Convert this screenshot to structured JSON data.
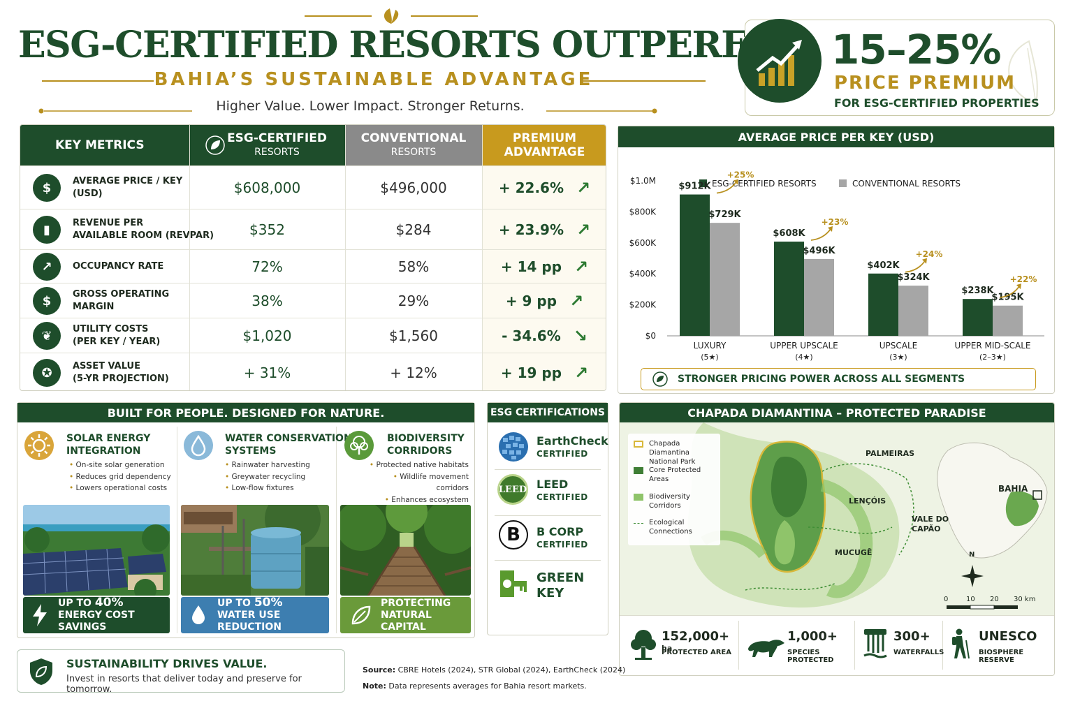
{
  "header": {
    "title": "ESG-CERTIFIED RESORTS OUTPERFORM",
    "subtitle": "BAHIA’S SUSTAINABLE ADVANTAGE",
    "tagline": "Higher Value. Lower Impact. Stronger Returns."
  },
  "premium": {
    "value": "15–25%",
    "label": "PRICE PREMIUM",
    "sub": "FOR ESG-CERTIFIED PROPERTIES",
    "icon": "growth-chart-icon"
  },
  "metrics_table": {
    "headers": {
      "metric": "KEY METRICS",
      "esg": "ESG-CERTIFIED",
      "esg_sub": "RESORTS",
      "conv": "CONVENTIONAL",
      "conv_sub": "RESORTS",
      "prem": "PREMIUM",
      "prem_sub": "ADVANTAGE"
    },
    "rows": [
      {
        "label1": "AVERAGE PRICE / KEY",
        "label2": "(USD)",
        "esg": "$608,000",
        "conv": "$496,000",
        "adv": "+ 22.6%",
        "dir": "up",
        "icon": "$"
      },
      {
        "label1": "REVENUE PER",
        "label2": "AVAILABLE ROOM (REVPAR)",
        "esg": "$352",
        "conv": "$284",
        "adv": "+ 23.9%",
        "dir": "up",
        "icon": "▮"
      },
      {
        "label1": "OCCUPANCY RATE",
        "label2": "",
        "esg": "72%",
        "conv": "58%",
        "adv": "+ 14 pp",
        "dir": "up",
        "icon": "↗"
      },
      {
        "label1": "GROSS OPERATING",
        "label2": "MARGIN",
        "esg": "38%",
        "conv": "29%",
        "adv": "+ 9 pp",
        "dir": "up",
        "icon": "$"
      },
      {
        "label1": "UTILITY COSTS",
        "label2": "(PER KEY / YEAR)",
        "esg": "$1,020",
        "conv": "$1,560",
        "adv": "- 34.6%",
        "dir": "down",
        "icon": "❦"
      },
      {
        "label1": "ASSET VALUE",
        "label2": "(5-YR PROJECTION)",
        "esg": "+ 31%",
        "conv": "+ 12%",
        "adv": "+ 19 pp",
        "dir": "up",
        "icon": "✪"
      }
    ]
  },
  "chart": {
    "heading": "AVERAGE PRICE PER KEY (USD)",
    "footer": "STRONGER PRICING POWER ACROSS ALL SEGMENTS",
    "colors": {
      "esg": "#1e4d2b",
      "conv": "#a6a6a6",
      "accent": "#b8901f"
    }
  },
  "chart_data": {
    "type": "bar",
    "title": "AVERAGE PRICE PER KEY (USD)",
    "categories": [
      "LUXURY",
      "UPPER UPSCALE",
      "UPSCALE",
      "UPPER MID-SCALE"
    ],
    "category_subs": [
      "(5★)",
      "(4★)",
      "(3★)",
      "(2–3★)"
    ],
    "series": [
      {
        "name": "ESG-CERTIFIED RESORTS",
        "values": [
          912,
          608,
          402,
          238
        ],
        "labels": [
          "$912K",
          "$608K",
          "$402K",
          "$238K"
        ]
      },
      {
        "name": "CONVENTIONAL RESORTS",
        "values": [
          729,
          496,
          324,
          195
        ],
        "labels": [
          "$729K",
          "$496K",
          "$324K",
          "$195K"
        ]
      }
    ],
    "premiums": [
      "+25%",
      "+23%",
      "+24%",
      "+22%"
    ],
    "yticks": [
      "$0",
      "$200K",
      "$400K",
      "$600K",
      "$800K",
      "$1.0M"
    ],
    "ylim": [
      0,
      1000
    ],
    "legend": "top",
    "grid": false
  },
  "built": {
    "heading": "BUILT FOR PEOPLE. DESIGNED FOR NATURE.",
    "features": [
      {
        "t1": "SOLAR ENERGY",
        "t2": "INTEGRATION",
        "bullets": [
          "On-site solar generation",
          "Reduces grid dependency",
          "Lowers operational costs"
        ],
        "stat_a": "UP TO ",
        "stat_b": "40%",
        "stat_c": "ENERGY COST SAVINGS"
      },
      {
        "t1": "WATER CONSERVATION",
        "t2": "SYSTEMS",
        "bullets": [
          "Rainwater harvesting",
          "Greywater recycling",
          "Low-flow fixtures"
        ],
        "stat_a": "UP TO ",
        "stat_b": "50%",
        "stat_c": "WATER USE REDUCTION"
      },
      {
        "t1": "BIODIVERSITY",
        "t2": "CORRIDORS",
        "bullets": [
          "Protected native habitats",
          "Wildlife movement corridors",
          "Enhances ecosystem health"
        ],
        "stat_a": "PROTECTING",
        "stat_b": "",
        "stat_c": "NATURAL CAPITAL"
      }
    ]
  },
  "certifications": {
    "heading": "ESG CERTIFICATIONS",
    "items": [
      {
        "name": "EarthCheck",
        "sub": "CERTIFIED"
      },
      {
        "name": "LEED",
        "sub": "CERTIFIED"
      },
      {
        "name": "B CORP",
        "sub": "CERTIFIED"
      },
      {
        "name": "GREEN",
        "sub": "KEY"
      }
    ],
    "leed_mark": "LEED",
    "bcorp_mark": "B"
  },
  "map": {
    "heading": "CHAPADA DIAMANTINA – PROTECTED PARADISE",
    "legend": [
      {
        "l1": "Chapada Diamantina",
        "l2": "National Park"
      },
      {
        "l1": "Core Protected",
        "l2": "Areas"
      },
      {
        "l1": "Biodiversity",
        "l2": "Corridors"
      },
      {
        "l1": "Ecological",
        "l2": "Connections"
      }
    ],
    "places": {
      "palmeiras": "PALMEIRAS",
      "lencois": "LENÇÓIS",
      "vale1": "VALE DO",
      "vale2": "CAPÃO",
      "mucuge": "MUCUGÊ",
      "bahia": "BAHIA"
    },
    "compass": "N",
    "scale": [
      "0",
      "10",
      "20",
      "30 km"
    ],
    "facts": [
      {
        "val": "152,000+",
        "unit": "ha",
        "lbl": "PROTECTED AREA"
      },
      {
        "val": "1,000+",
        "unit": "",
        "lbl": "SPECIES PROTECTED"
      },
      {
        "val": "300+",
        "unit": "",
        "lbl": "WATERFALLS"
      },
      {
        "val": "UNESCO",
        "unit": "",
        "lbl": "BIOSPHERE RESERVE"
      }
    ]
  },
  "footer": {
    "drives_title": "SUSTAINABILITY DRIVES VALUE.",
    "drives_sub": "Invest in resorts that deliver today and preserve for tomorrow.",
    "source_label": "Source:",
    "source": "CBRE Hotels (2024), STR Global (2024), EarthCheck (2024)",
    "note_label": "Note:",
    "note": "Data represents averages for Bahia resort markets."
  }
}
